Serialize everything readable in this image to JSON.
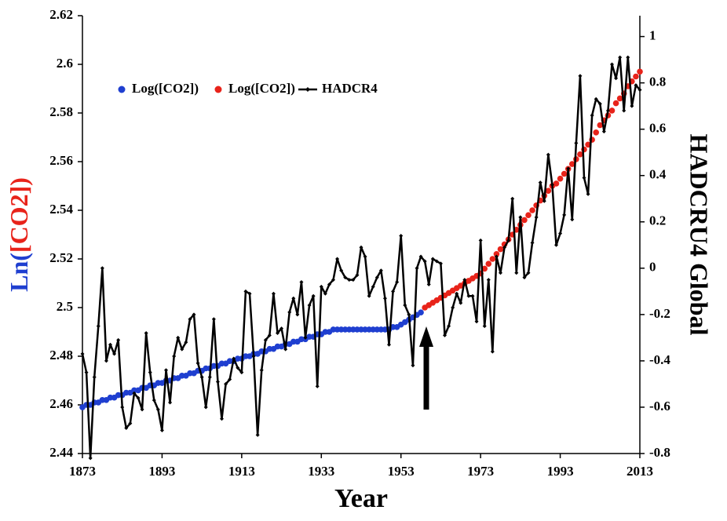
{
  "chart_data": {
    "type": "line",
    "x_label": "Year",
    "y_label_parts": [
      {
        "text": "Ln(",
        "color": "#1f3fd0"
      },
      {
        "text": "[CO2]",
        "color": "#e8231a"
      },
      {
        "text": ")",
        "color": "#e8231a"
      }
    ],
    "y2_label": "HADCRU4 Global",
    "legend": "upper left",
    "xlim": [
      1873,
      2013
    ],
    "xticks": [
      1873,
      1893,
      1913,
      1933,
      1953,
      1973,
      1993,
      2013
    ],
    "ylim": [
      2.44,
      2.62
    ],
    "yticks": [
      2.44,
      2.46,
      2.48,
      2.5,
      2.52,
      2.54,
      2.56,
      2.58,
      2.6,
      2.62
    ],
    "y2lim": [
      -0.8,
      1.09
    ],
    "y2ticks": [
      -0.8,
      -0.6,
      -0.4,
      -0.2,
      0,
      0.2,
      0.4,
      0.6,
      0.8,
      1
    ],
    "x": [
      1873,
      1874,
      1875,
      1876,
      1877,
      1878,
      1879,
      1880,
      1881,
      1882,
      1883,
      1884,
      1885,
      1886,
      1887,
      1888,
      1889,
      1890,
      1891,
      1892,
      1893,
      1894,
      1895,
      1896,
      1897,
      1898,
      1899,
      1900,
      1901,
      1902,
      1903,
      1904,
      1905,
      1906,
      1907,
      1908,
      1909,
      1910,
      1911,
      1912,
      1913,
      1914,
      1915,
      1916,
      1917,
      1918,
      1919,
      1920,
      1921,
      1922,
      1923,
      1924,
      1925,
      1926,
      1927,
      1928,
      1929,
      1930,
      1931,
      1932,
      1933,
      1934,
      1935,
      1936,
      1937,
      1938,
      1939,
      1940,
      1941,
      1942,
      1943,
      1944,
      1945,
      1946,
      1947,
      1948,
      1949,
      1950,
      1951,
      1952,
      1953,
      1954,
      1955,
      1956,
      1957,
      1958,
      1959,
      1960,
      1961,
      1962,
      1963,
      1964,
      1965,
      1966,
      1967,
      1968,
      1969,
      1970,
      1971,
      1972,
      1973,
      1974,
      1975,
      1976,
      1977,
      1978,
      1979,
      1980,
      1981,
      1982,
      1983,
      1984,
      1985,
      1986,
      1987,
      1988,
      1989,
      1990,
      1991,
      1992,
      1993,
      1994,
      1995,
      1996,
      1997,
      1998,
      1999,
      2000,
      2001,
      2002,
      2003,
      2004,
      2005,
      2006,
      2007,
      2008,
      2009,
      2010,
      2011,
      2012,
      2013
    ],
    "series": [
      {
        "name": "Log([CO2])",
        "color": "#1f3fd0",
        "style": "dots",
        "values": [
          2.459,
          2.46,
          2.46,
          2.461,
          2.461,
          2.462,
          2.462,
          2.463,
          2.463,
          2.464,
          2.464,
          2.465,
          2.465,
          2.466,
          2.466,
          2.467,
          2.467,
          2.468,
          2.468,
          2.469,
          2.469,
          2.47,
          2.47,
          2.471,
          2.471,
          2.472,
          2.472,
          2.473,
          2.473,
          2.474,
          2.474,
          2.475,
          2.475,
          2.476,
          2.476,
          2.477,
          2.477,
          2.478,
          2.478,
          2.479,
          2.479,
          2.48,
          2.48,
          2.481,
          2.481,
          2.482,
          2.482,
          2.483,
          2.483,
          2.484,
          2.484,
          2.485,
          2.485,
          2.486,
          2.486,
          2.487,
          2.487,
          2.488,
          2.488,
          2.489,
          2.489,
          2.49,
          2.49,
          2.491,
          2.491,
          2.491,
          2.491,
          2.491,
          2.491,
          2.491,
          2.491,
          2.491,
          2.491,
          2.491,
          2.491,
          2.491,
          2.491,
          2.491,
          2.492,
          2.492,
          2.493,
          2.494,
          2.495,
          2.496,
          2.497,
          2.498,
          null,
          null,
          null,
          null,
          null,
          null,
          null,
          null,
          null,
          null,
          null,
          null,
          null,
          null,
          null,
          null,
          null,
          null,
          null,
          null,
          null,
          null,
          null,
          null,
          null,
          null,
          null,
          null,
          null,
          null,
          null,
          null,
          null,
          null,
          null,
          null,
          null,
          null,
          null,
          null,
          null,
          null,
          null,
          null,
          null,
          null,
          null,
          null,
          null,
          null,
          null,
          null,
          null,
          null,
          null
        ]
      },
      {
        "name": "Log([CO2])",
        "color": "#e8231a",
        "style": "dots",
        "values": [
          null,
          null,
          null,
          null,
          null,
          null,
          null,
          null,
          null,
          null,
          null,
          null,
          null,
          null,
          null,
          null,
          null,
          null,
          null,
          null,
          null,
          null,
          null,
          null,
          null,
          null,
          null,
          null,
          null,
          null,
          null,
          null,
          null,
          null,
          null,
          null,
          null,
          null,
          null,
          null,
          null,
          null,
          null,
          null,
          null,
          null,
          null,
          null,
          null,
          null,
          null,
          null,
          null,
          null,
          null,
          null,
          null,
          null,
          null,
          null,
          null,
          null,
          null,
          null,
          null,
          null,
          null,
          null,
          null,
          null,
          null,
          null,
          null,
          null,
          null,
          null,
          null,
          null,
          null,
          null,
          null,
          null,
          null,
          null,
          null,
          null,
          2.5,
          2.501,
          2.502,
          2.503,
          2.504,
          2.505,
          2.506,
          2.507,
          2.508,
          2.509,
          2.51,
          2.511,
          2.512,
          2.513,
          2.514,
          2.516,
          2.518,
          2.52,
          2.522,
          2.524,
          2.526,
          2.528,
          2.53,
          2.532,
          2.534,
          2.536,
          2.538,
          2.54,
          2.542,
          2.544,
          2.546,
          2.548,
          2.55,
          2.551,
          2.553,
          2.555,
          2.557,
          2.559,
          2.561,
          2.563,
          2.565,
          2.567,
          2.569,
          2.572,
          2.575,
          2.577,
          2.579,
          2.581,
          2.584,
          2.586,
          2.588,
          2.591,
          2.593,
          2.595,
          2.597
        ]
      },
      {
        "name": "HADCR4",
        "color": "#000000",
        "style": "line",
        "axis": "y2",
        "values": [
          -0.37,
          -0.45,
          -0.82,
          -0.47,
          -0.25,
          0.0,
          -0.4,
          -0.33,
          -0.37,
          -0.31,
          -0.6,
          -0.69,
          -0.67,
          -0.54,
          -0.56,
          -0.61,
          -0.28,
          -0.45,
          -0.57,
          -0.61,
          -0.7,
          -0.44,
          -0.58,
          -0.38,
          -0.3,
          -0.35,
          -0.32,
          -0.22,
          -0.2,
          -0.41,
          -0.47,
          -0.6,
          -0.47,
          -0.22,
          -0.49,
          -0.65,
          -0.5,
          -0.48,
          -0.39,
          -0.43,
          -0.45,
          -0.1,
          -0.11,
          -0.38,
          -0.72,
          -0.44,
          -0.31,
          -0.29,
          -0.11,
          -0.28,
          -0.26,
          -0.35,
          -0.19,
          -0.13,
          -0.2,
          -0.06,
          -0.3,
          -0.16,
          -0.12,
          -0.51,
          -0.08,
          -0.11,
          -0.07,
          -0.05,
          0.04,
          -0.01,
          -0.04,
          -0.05,
          -0.05,
          -0.03,
          0.09,
          0.05,
          -0.12,
          -0.08,
          -0.04,
          -0.01,
          -0.13,
          -0.33,
          -0.1,
          -0.06,
          0.14,
          -0.16,
          -0.2,
          -0.42,
          0.0,
          0.05,
          0.03,
          -0.07,
          0.04,
          0.03,
          0.02,
          -0.29,
          -0.25,
          -0.17,
          -0.11,
          -0.15,
          -0.05,
          -0.12,
          -0.12,
          -0.23,
          0.12,
          -0.25,
          -0.05,
          -0.36,
          0.05,
          -0.02,
          0.09,
          0.12,
          0.3,
          -0.02,
          0.22,
          -0.04,
          -0.02,
          0.11,
          0.22,
          0.37,
          0.29,
          0.49,
          0.36,
          0.1,
          0.15,
          0.23,
          0.43,
          0.21,
          0.54,
          0.83,
          0.39,
          0.32,
          0.66,
          0.73,
          0.71,
          0.59,
          0.68,
          0.88,
          0.82,
          0.91,
          0.68,
          0.91,
          0.7,
          0.79,
          0.77
        ]
      }
    ]
  }
}
